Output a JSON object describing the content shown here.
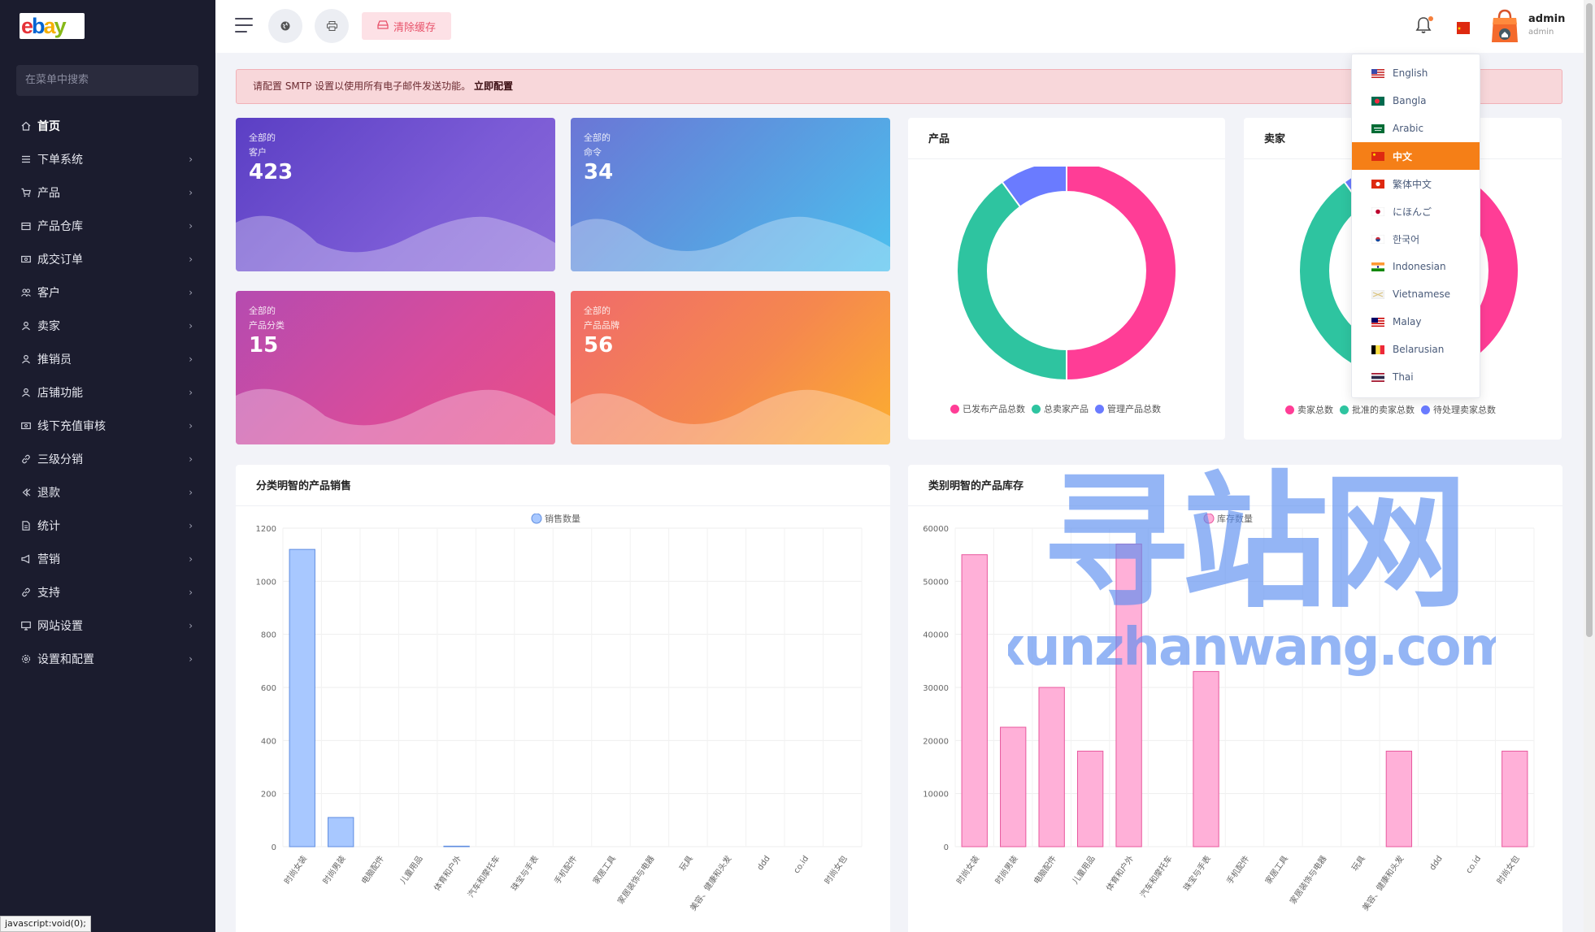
{
  "sidebar": {
    "search_placeholder": "在菜单中搜索",
    "items": [
      {
        "label": "首页",
        "icon": "home-icon",
        "active": true
      },
      {
        "label": "下单系统",
        "icon": "list-icon"
      },
      {
        "label": "产品",
        "icon": "cart-icon"
      },
      {
        "label": "产品仓库",
        "icon": "warehouse-icon"
      },
      {
        "label": "成交订单",
        "icon": "money-icon"
      },
      {
        "label": "客户",
        "icon": "users-icon"
      },
      {
        "label": "卖家",
        "icon": "user-icon"
      },
      {
        "label": "推销员",
        "icon": "user-icon"
      },
      {
        "label": "店铺功能",
        "icon": "user-icon"
      },
      {
        "label": "线下充值审核",
        "icon": "money-icon"
      },
      {
        "label": "三级分销",
        "icon": "link-icon"
      },
      {
        "label": "退款",
        "icon": "refund-icon"
      },
      {
        "label": "统计",
        "icon": "document-icon"
      },
      {
        "label": "营销",
        "icon": "megaphone-icon"
      },
      {
        "label": "支持",
        "icon": "link-icon"
      },
      {
        "label": "网站设置",
        "icon": "monitor-icon"
      },
      {
        "label": "设置和配置",
        "icon": "gear-icon"
      }
    ]
  },
  "status_bar": "javascript:void(0);",
  "header": {
    "clear_cache": "清除缓存",
    "user_name": "admin",
    "user_role": "admin"
  },
  "alert": {
    "text": "请配置 SMTP 设置以使用所有电子邮件发送功能。",
    "link": "立即配置"
  },
  "stats": [
    {
      "line1": "全部的",
      "line2": "客户",
      "value": "423"
    },
    {
      "line1": "全部的",
      "line2": "命令",
      "value": "34"
    },
    {
      "line1": "全部的",
      "line2": "产品分类",
      "value": "15"
    },
    {
      "line1": "全部的",
      "line2": "产品品牌",
      "value": "56"
    }
  ],
  "colors": {
    "pink": "#ff3d96",
    "green": "#2ec4a0",
    "blue": "#6a7bff",
    "orange": "#f57f17",
    "bar_blue": "#a8c8ff",
    "bar_pink": "#ffb0d8"
  },
  "product_card": {
    "title": "产品"
  },
  "seller_card": {
    "title": "卖家"
  },
  "sales_card": {
    "title": "分类明智的产品销售"
  },
  "stock_card": {
    "title": "类别明智的产品库存"
  },
  "chart_data": [
    {
      "type": "pie",
      "title": "产品",
      "labels": [
        "已发布产品总数",
        "总卖家产品",
        "管理产品总数"
      ],
      "values": [
        50,
        40,
        10
      ],
      "colors": [
        "#ff3d96",
        "#2ec4a0",
        "#6a7bff"
      ]
    },
    {
      "type": "pie",
      "title": "卖家",
      "labels": [
        "卖家总数",
        "批准的卖家总数",
        "待处理卖家总数"
      ],
      "values": [
        50,
        40,
        10
      ],
      "colors": [
        "#ff3d96",
        "#2ec4a0",
        "#6a7bff"
      ]
    },
    {
      "type": "bar",
      "title": "分类明智的产品销售",
      "categories": [
        "时尚女装",
        "时尚男装",
        "电脑配件",
        "儿童用品",
        "体育和户外",
        "汽车和摩托车",
        "珠宝与手表",
        "手机配件",
        "家居工具",
        "家居装饰与电器",
        "玩具",
        "美容、健康和头发",
        "ddd",
        "co.id",
        "时尚女包"
      ],
      "series": [
        {
          "name": "销售数量",
          "values": [
            1120,
            110,
            0,
            0,
            2,
            0,
            0,
            0,
            0,
            0,
            0,
            0,
            0,
            0,
            0
          ]
        }
      ],
      "ylim": [
        0,
        1200
      ],
      "yticks": [
        0,
        200,
        400,
        600,
        800,
        1000,
        1200
      ],
      "grid": true,
      "legend": "top-center"
    },
    {
      "type": "bar",
      "title": "类别明智的产品库存",
      "categories": [
        "时尚女装",
        "时尚男装",
        "电脑配件",
        "儿童用品",
        "体育和户外",
        "汽车和摩托车",
        "珠宝与手表",
        "手机配件",
        "家居工具",
        "家居装饰与电器",
        "玩具",
        "美容、健康和头发",
        "ddd",
        "co.id",
        "时尚女包"
      ],
      "series": [
        {
          "name": "库存数量",
          "values": [
            55000,
            22500,
            30000,
            18000,
            57000,
            0,
            33000,
            0,
            0,
            0,
            0,
            18000,
            0,
            0,
            18000
          ]
        }
      ],
      "ylim": [
        0,
        60000
      ],
      "yticks": [
        0,
        10000,
        20000,
        30000,
        40000,
        50000,
        60000
      ],
      "grid": true,
      "legend": "top-center"
    }
  ],
  "languages": [
    {
      "label": "English",
      "flag": "us"
    },
    {
      "label": "Bangla",
      "flag": "bd"
    },
    {
      "label": "Arabic",
      "flag": "sa"
    },
    {
      "label": "中文",
      "flag": "cn",
      "selected": true
    },
    {
      "label": "繁体中文",
      "flag": "hk"
    },
    {
      "label": "にほんご",
      "flag": "jp"
    },
    {
      "label": "한국어",
      "flag": "kr"
    },
    {
      "label": "Indonesian",
      "flag": "in"
    },
    {
      "label": "Vietnamese",
      "flag": "vn"
    },
    {
      "label": "Malay",
      "flag": "my"
    },
    {
      "label": "Belarusian",
      "flag": "be"
    },
    {
      "label": "Thai",
      "flag": "th"
    }
  ],
  "watermark": {
    "line1": "寻站网",
    "line2": "xunzhanwang.com"
  }
}
